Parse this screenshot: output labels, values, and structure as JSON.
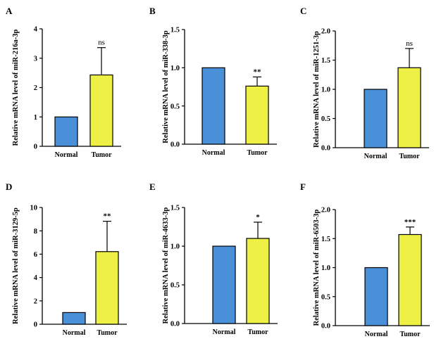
{
  "colors": {
    "normal": "#4a90d9",
    "tumor": "#eef046",
    "stroke": "#000000"
  },
  "chart_data": [
    {
      "type": "bar",
      "panel": "A",
      "categories": [
        "Normal",
        "Tumor"
      ],
      "values": [
        1.0,
        2.43
      ],
      "error": [
        0.0,
        0.93
      ],
      "ylabel": "Relative mRNA level of miR-216a-3p",
      "ylim": [
        0,
        4
      ],
      "yticks": [
        0,
        1,
        2,
        3,
        4
      ],
      "tick_decimals": 0,
      "significance": "ns",
      "grid": false
    },
    {
      "type": "bar",
      "panel": "B",
      "categories": [
        "Normal",
        "Tumor"
      ],
      "values": [
        1.0,
        0.76
      ],
      "error": [
        0.0,
        0.12
      ],
      "ylabel": "Relative mRNA level of miR-338-3p",
      "ylim": [
        0,
        1.5
      ],
      "yticks": [
        0,
        0.5,
        1.0,
        1.5
      ],
      "tick_decimals": 1,
      "significance": "**",
      "grid": false
    },
    {
      "type": "bar",
      "panel": "C",
      "categories": [
        "Normal",
        "Tumor"
      ],
      "values": [
        1.0,
        1.37
      ],
      "error": [
        0.0,
        0.33
      ],
      "ylabel": "Relative mRNA level of miR-1251-3p",
      "ylim": [
        0,
        2.0
      ],
      "yticks": [
        0,
        0.5,
        1.0,
        1.5,
        2.0
      ],
      "tick_decimals": 1,
      "significance": "ns",
      "grid": false
    },
    {
      "type": "bar",
      "panel": "D",
      "categories": [
        "Normal",
        "Tumor"
      ],
      "values": [
        1.0,
        6.22
      ],
      "error": [
        0.0,
        2.6
      ],
      "ylabel": "Relative mRNA level of miR-3129-5p",
      "ylim": [
        0,
        10
      ],
      "yticks": [
        0,
        2,
        4,
        6,
        8,
        10
      ],
      "tick_decimals": 0,
      "significance": "**",
      "grid": false
    },
    {
      "type": "bar",
      "panel": "E",
      "categories": [
        "Normal",
        "Tumor"
      ],
      "values": [
        1.0,
        1.1
      ],
      "error": [
        0.0,
        0.21
      ],
      "ylabel": "Relative mRNA level of miR-4633-3p",
      "ylim": [
        0,
        1.5
      ],
      "yticks": [
        0,
        0.5,
        1.0,
        1.5
      ],
      "tick_decimals": 1,
      "significance": "*",
      "grid": false
    },
    {
      "type": "bar",
      "panel": "F",
      "categories": [
        "Normal",
        "Tumor"
      ],
      "values": [
        1.0,
        1.57
      ],
      "error": [
        0.0,
        0.13
      ],
      "ylabel": "Relative mRNA level of miR-6503-3p",
      "ylim": [
        0,
        2.0
      ],
      "yticks": [
        0,
        0.5,
        1.0,
        1.5,
        2.0
      ],
      "tick_decimals": 1,
      "significance": "***",
      "grid": false
    }
  ]
}
